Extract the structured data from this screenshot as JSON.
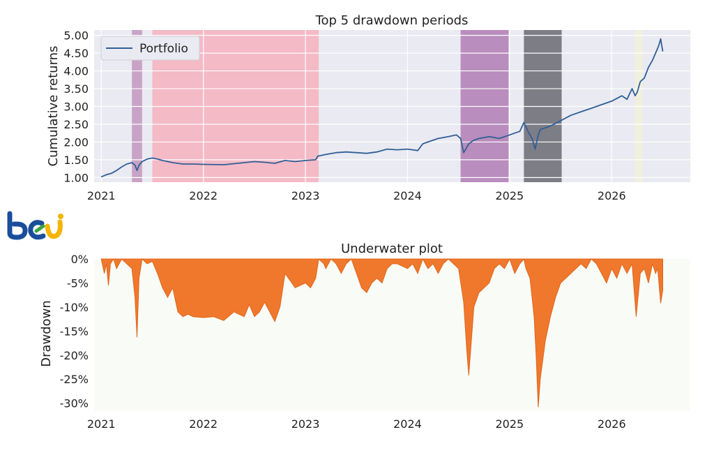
{
  "colors": {
    "top_bg": "#eaeaf2",
    "bottom_bg": "#f9fbf7",
    "portfolio_line": "#2f5f96",
    "drawdown_fill": "#f0782d",
    "drawdown_edge": "#e0661a",
    "logo_blue": "#1a4e9a",
    "logo_yellow": "#f5b400",
    "logo_green": "#3aa341"
  },
  "logo": {
    "name": "bcj-logo"
  },
  "chart_data": [
    {
      "type": "line",
      "title": "Top 5 drawdown periods",
      "xlabel": "",
      "ylabel": "Cumulative returns",
      "xlim": [
        2020.93,
        2026.77
      ],
      "ylim": [
        0.87,
        5.15
      ],
      "x_ticks": [
        2021,
        2022,
        2023,
        2024,
        2025,
        2026
      ],
      "x_tick_labels": [
        "2021",
        "2022",
        "2023",
        "2024",
        "2025",
        "2026"
      ],
      "y_ticks": [
        1.0,
        1.5,
        2.0,
        2.5,
        3.0,
        3.5,
        4.0,
        4.5,
        5.0
      ],
      "y_tick_labels": [
        "1.00",
        "1.50",
        "2.00",
        "2.50",
        "3.00",
        "3.50",
        "4.00",
        "4.50",
        "5.00"
      ],
      "grid": true,
      "legend": {
        "placement": "top-left",
        "entries": [
          "Portfolio"
        ]
      },
      "series": [
        {
          "name": "Portfolio",
          "x": [
            2021.0,
            2021.05,
            2021.1,
            2021.15,
            2021.2,
            2021.25,
            2021.3,
            2021.33,
            2021.35,
            2021.37,
            2021.4,
            2021.45,
            2021.5,
            2021.55,
            2021.6,
            2021.7,
            2021.8,
            2021.9,
            2022.0,
            2022.2,
            2022.4,
            2022.5,
            2022.6,
            2022.7,
            2022.8,
            2022.9,
            2023.0,
            2023.1,
            2023.12,
            2023.2,
            2023.3,
            2023.4,
            2023.5,
            2023.6,
            2023.7,
            2023.8,
            2023.9,
            2024.0,
            2024.1,
            2024.15,
            2024.2,
            2024.3,
            2024.4,
            2024.48,
            2024.52,
            2024.55,
            2024.58,
            2024.6,
            2024.65,
            2024.7,
            2024.8,
            2024.9,
            2025.0,
            2025.05,
            2025.1,
            2025.14,
            2025.18,
            2025.22,
            2025.25,
            2025.28,
            2025.3,
            2025.35,
            2025.4,
            2025.5,
            2025.6,
            2025.7,
            2025.8,
            2025.9,
            2026.0,
            2026.1,
            2026.15,
            2026.2,
            2026.23,
            2026.25,
            2026.28,
            2026.32,
            2026.36,
            2026.4,
            2026.43,
            2026.46,
            2026.48,
            2026.5
          ],
          "values": [
            1.02,
            1.08,
            1.12,
            1.2,
            1.3,
            1.38,
            1.42,
            1.35,
            1.2,
            1.35,
            1.45,
            1.52,
            1.55,
            1.52,
            1.48,
            1.42,
            1.38,
            1.38,
            1.37,
            1.36,
            1.42,
            1.45,
            1.43,
            1.4,
            1.48,
            1.45,
            1.48,
            1.5,
            1.6,
            1.65,
            1.7,
            1.72,
            1.7,
            1.68,
            1.72,
            1.8,
            1.78,
            1.8,
            1.76,
            1.95,
            2.0,
            2.1,
            2.15,
            2.2,
            2.1,
            1.7,
            1.85,
            1.95,
            2.05,
            2.1,
            2.15,
            2.1,
            2.2,
            2.25,
            2.3,
            2.55,
            2.3,
            2.1,
            1.8,
            2.2,
            2.35,
            2.4,
            2.45,
            2.6,
            2.75,
            2.85,
            2.95,
            3.05,
            3.15,
            3.3,
            3.2,
            3.5,
            3.3,
            3.4,
            3.7,
            3.8,
            4.1,
            4.3,
            4.5,
            4.7,
            4.9,
            4.55
          ]
        }
      ],
      "drawdown_periods": [
        {
          "start": 2021.3,
          "end": 2021.4,
          "color": "#c9a3c6"
        },
        {
          "start": 2021.5,
          "end": 2023.13,
          "color": "#f4bac6"
        },
        {
          "start": 2024.52,
          "end": 2024.99,
          "color": "#b98dbd"
        },
        {
          "start": 2025.14,
          "end": 2025.51,
          "color": "#7d7d86"
        },
        {
          "start": 2026.23,
          "end": 2026.3,
          "color": "#f1f0dd"
        }
      ]
    },
    {
      "type": "area",
      "title": "Underwater plot",
      "xlabel": "",
      "ylabel": "Drawdown",
      "xlim": [
        2020.93,
        2026.77
      ],
      "ylim": [
        -31.5,
        0
      ],
      "x_ticks": [
        2021,
        2022,
        2023,
        2024,
        2025,
        2026
      ],
      "x_tick_labels": [
        "2021",
        "2022",
        "2023",
        "2024",
        "2025",
        "2026"
      ],
      "y_ticks": [
        0,
        -5,
        -10,
        -15,
        -20,
        -25,
        -30
      ],
      "y_tick_labels": [
        "0%",
        "-5%",
        "-10%",
        "-15%",
        "-20%",
        "-25%",
        "-30%"
      ],
      "grid": false,
      "series": [
        {
          "name": "",
          "x": [
            2021.0,
            2021.03,
            2021.05,
            2021.07,
            2021.09,
            2021.12,
            2021.15,
            2021.2,
            2021.25,
            2021.3,
            2021.33,
            2021.35,
            2021.37,
            2021.4,
            2021.45,
            2021.5,
            2021.55,
            2021.6,
            2021.65,
            2021.7,
            2021.75,
            2021.8,
            2021.85,
            2021.9,
            2022.0,
            2022.1,
            2022.2,
            2022.3,
            2022.4,
            2022.45,
            2022.5,
            2022.55,
            2022.6,
            2022.65,
            2022.7,
            2022.75,
            2022.8,
            2022.9,
            2023.0,
            2023.05,
            2023.1,
            2023.13,
            2023.18,
            2023.2,
            2023.25,
            2023.3,
            2023.35,
            2023.4,
            2023.45,
            2023.5,
            2023.55,
            2023.6,
            2023.65,
            2023.7,
            2023.75,
            2023.8,
            2023.85,
            2023.9,
            2024.0,
            2024.05,
            2024.1,
            2024.15,
            2024.2,
            2024.25,
            2024.3,
            2024.35,
            2024.4,
            2024.45,
            2024.5,
            2024.55,
            2024.58,
            2024.6,
            2024.65,
            2024.7,
            2024.75,
            2024.8,
            2024.85,
            2024.9,
            2024.95,
            2025.0,
            2025.05,
            2025.1,
            2025.14,
            2025.16,
            2025.2,
            2025.24,
            2025.26,
            2025.28,
            2025.3,
            2025.35,
            2025.4,
            2025.45,
            2025.5,
            2025.55,
            2025.6,
            2025.65,
            2025.7,
            2025.75,
            2025.8,
            2025.85,
            2025.9,
            2025.95,
            2026.0,
            2026.05,
            2026.1,
            2026.15,
            2026.2,
            2026.24,
            2026.28,
            2026.32,
            2026.36,
            2026.4,
            2026.43,
            2026.45,
            2026.48,
            2026.5
          ],
          "values": [
            0,
            -3,
            -1,
            -5.5,
            -1,
            0,
            -2,
            0,
            -1,
            -2,
            -8,
            -16.3,
            -4,
            0,
            -1,
            -0.5,
            -3,
            -6,
            -8,
            -6,
            -11,
            -12,
            -11.5,
            -12,
            -12.2,
            -12,
            -12.8,
            -11,
            -12,
            -9.5,
            -12,
            -11,
            -9,
            -11,
            -13,
            -10,
            -3,
            -6,
            -5,
            -6,
            -4,
            0,
            -1,
            -2,
            0,
            -1,
            -3,
            -1,
            0,
            -3,
            -6,
            -7,
            -5,
            -4,
            -5,
            -2,
            -1,
            -1,
            -2,
            -1,
            -3,
            0,
            -2,
            -1,
            -3,
            -1,
            0,
            -1,
            -2,
            -9,
            -19,
            -24.2,
            -10,
            -7,
            -6,
            -5,
            -2,
            -1,
            -2,
            0,
            -3,
            -1,
            0,
            -2,
            -4,
            -12,
            -20,
            -30.8,
            -25,
            -17,
            -12,
            -8,
            -5,
            -4,
            -3,
            -2,
            -1,
            -2,
            0,
            -1,
            -3,
            -5,
            -2,
            -4,
            -1,
            -3,
            -1,
            -12,
            -3,
            -2,
            -5,
            -1,
            -3,
            -2,
            -9.2,
            -6.5
          ]
        }
      ]
    }
  ]
}
